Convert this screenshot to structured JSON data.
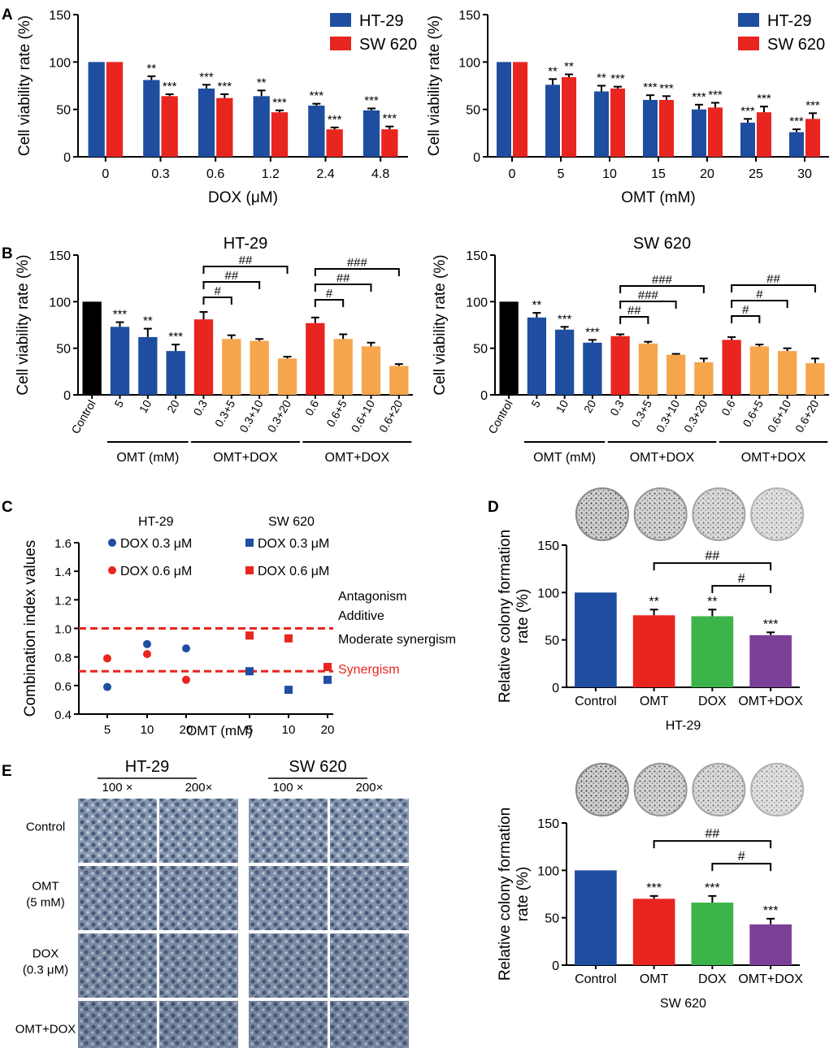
{
  "colors": {
    "blue": "#1f4ea1",
    "red": "#e8251f",
    "orange": "#f5a64c",
    "black": "#000000",
    "green": "#3cb44a",
    "purple": "#7b3f98",
    "threshold": "#e8251f"
  },
  "panel_labels": {
    "a": "A",
    "b": "B",
    "c": "C",
    "d": "D",
    "e": "E"
  },
  "chart_data": [
    {
      "id": "A1",
      "type": "bar",
      "title": "",
      "xlabel": "DOX (μM)",
      "ylabel": "Cell viability rate (%)",
      "ylim": [
        0,
        150
      ],
      "yticks": [
        "0",
        "50",
        "100",
        "150"
      ],
      "categories": [
        "0",
        "0.3",
        "0.6",
        "1.2",
        "2.4",
        "4.8"
      ],
      "legend": [
        "HT-29",
        "SW 620"
      ],
      "series": [
        {
          "name": "HT-29",
          "values": [
            100,
            81,
            72,
            64,
            54,
            49
          ],
          "errors": [
            0,
            4,
            4,
            6,
            2,
            2
          ],
          "stars": [
            "",
            "**",
            "***",
            "**",
            "***",
            "***"
          ]
        },
        {
          "name": "SW 620",
          "values": [
            100,
            64,
            62,
            47,
            29,
            29
          ],
          "errors": [
            0,
            2,
            4,
            2,
            2,
            3
          ],
          "stars": [
            "",
            "***",
            "***",
            "***",
            "***",
            "***"
          ]
        }
      ]
    },
    {
      "id": "A2",
      "type": "bar",
      "title": "",
      "xlabel": "OMT (mM)",
      "ylabel": "Cell viability rate (%)",
      "ylim": [
        0,
        150
      ],
      "yticks": [
        "0",
        "50",
        "100",
        "150"
      ],
      "categories": [
        "0",
        "5",
        "10",
        "15",
        "20",
        "25",
        "30"
      ],
      "legend": [
        "HT-29",
        "SW 620"
      ],
      "series": [
        {
          "name": "HT-29",
          "values": [
            100,
            76,
            69,
            60,
            50,
            36,
            26
          ],
          "errors": [
            0,
            6,
            6,
            5,
            5,
            4,
            3
          ],
          "stars": [
            "",
            "**",
            "**",
            "***",
            "***",
            "***",
            "***"
          ]
        },
        {
          "name": "SW 620",
          "values": [
            100,
            84,
            72,
            60,
            52,
            47,
            40
          ],
          "errors": [
            0,
            3,
            2,
            4,
            5,
            6,
            6
          ],
          "stars": [
            "",
            "**",
            "***",
            "***",
            "***",
            "***",
            "***"
          ]
        }
      ]
    },
    {
      "id": "B1",
      "type": "bar",
      "title": "HT-29",
      "ylabel": "Cell viability rate (%)",
      "ylim": [
        0,
        150
      ],
      "yticks": [
        "0",
        "50",
        "100",
        "150"
      ],
      "categories": [
        "Control",
        "5",
        "10",
        "20",
        "0.3",
        "0.3+5",
        "0.3+10",
        "0.3+20",
        "0.6",
        "0.6+5",
        "0.6+10",
        "0.6+20"
      ],
      "values": [
        100,
        73,
        62,
        47,
        81,
        60,
        58,
        39,
        77,
        60,
        52,
        31
      ],
      "errors": [
        0,
        5,
        9,
        7,
        8,
        4,
        2,
        2,
        6,
        5,
        4,
        2
      ],
      "colors": [
        "black",
        "blue",
        "blue",
        "blue",
        "red",
        "orange",
        "orange",
        "orange",
        "red",
        "orange",
        "orange",
        "orange"
      ],
      "stars": [
        "",
        "***",
        "**",
        "***",
        "",
        "",
        "",
        "",
        "",
        "",
        "",
        ""
      ],
      "groups": [
        "OMT (mM)",
        "OMT+DOX",
        "OMT+DOX"
      ],
      "brackets": [
        {
          "from": 4,
          "to": 5,
          "label": "#"
        },
        {
          "from": 4,
          "to": 6,
          "label": "##"
        },
        {
          "from": 4,
          "to": 7,
          "label": "##"
        },
        {
          "from": 8,
          "to": 9,
          "label": "#"
        },
        {
          "from": 8,
          "to": 10,
          "label": "##"
        },
        {
          "from": 8,
          "to": 11,
          "label": "###"
        }
      ]
    },
    {
      "id": "B2",
      "type": "bar",
      "title": "SW 620",
      "ylabel": "Cell viability rate (%)",
      "ylim": [
        0,
        150
      ],
      "yticks": [
        "0",
        "50",
        "100",
        "150"
      ],
      "categories": [
        "Control",
        "5",
        "10",
        "20",
        "0.3",
        "0.3+5",
        "0.3+10",
        "0.3+20",
        "0.6",
        "0.6+5",
        "0.6+10",
        "0.6+20"
      ],
      "values": [
        100,
        83,
        70,
        56,
        63,
        55,
        43,
        35,
        59,
        52,
        47,
        34
      ],
      "errors": [
        0,
        5,
        3,
        3,
        2,
        2,
        1,
        4,
        3,
        2,
        3,
        5
      ],
      "colors": [
        "black",
        "blue",
        "blue",
        "blue",
        "red",
        "orange",
        "orange",
        "orange",
        "red",
        "orange",
        "orange",
        "orange"
      ],
      "stars": [
        "",
        "**",
        "***",
        "***",
        "",
        "",
        "",
        "",
        "",
        "",
        "",
        ""
      ],
      "groups": [
        "OMT (mM)",
        "OMT+DOX",
        "OMT+DOX"
      ],
      "brackets": [
        {
          "from": 4,
          "to": 5,
          "label": "##"
        },
        {
          "from": 4,
          "to": 6,
          "label": "###"
        },
        {
          "from": 4,
          "to": 7,
          "label": "###"
        },
        {
          "from": 8,
          "to": 9,
          "label": "#"
        },
        {
          "from": 8,
          "to": 10,
          "label": "#"
        },
        {
          "from": 8,
          "to": 11,
          "label": "##"
        }
      ]
    },
    {
      "id": "C",
      "type": "scatter",
      "xlabel": "OMT (mM)",
      "ylabel": "Combination index values",
      "ylim": [
        0.4,
        1.6
      ],
      "yticks": [
        "0.4",
        "0.6",
        "0.8",
        "1.0",
        "1.2",
        "1.4",
        "1.6"
      ],
      "xticks": [
        "5",
        "10",
        "20",
        "5",
        "10",
        "20"
      ],
      "legend_titles": [
        "HT-29",
        "SW 620"
      ],
      "series": [
        {
          "name": "DOX  0.3 μM",
          "cell": "HT-29",
          "marker": "circle",
          "color": "blue",
          "points": [
            [
              0,
              0.59
            ],
            [
              1,
              0.89
            ],
            [
              2,
              0.86
            ]
          ]
        },
        {
          "name": "DOX  0.6 μM",
          "cell": "HT-29",
          "marker": "circle",
          "color": "red",
          "points": [
            [
              0,
              0.79
            ],
            [
              1,
              0.82
            ],
            [
              2,
              0.64
            ]
          ]
        },
        {
          "name": "DOX  0.3 μM",
          "cell": "SW 620",
          "marker": "square",
          "color": "blue",
          "points": [
            [
              3,
              0.7
            ],
            [
              4,
              0.57
            ],
            [
              5,
              0.64
            ]
          ]
        },
        {
          "name": "DOX  0.6 μM",
          "cell": "SW 620",
          "marker": "square",
          "color": "red",
          "points": [
            [
              3,
              0.95
            ],
            [
              4,
              0.93
            ],
            [
              5,
              0.73
            ]
          ]
        }
      ],
      "thresholds": [
        1.0,
        0.7
      ],
      "zone_labels": [
        "Antagonism",
        "Additive",
        "Moderate synergism",
        "Synergism"
      ]
    },
    {
      "id": "D1",
      "type": "bar",
      "ylabel": "Relative colony formation rate (%)",
      "ylim": [
        0,
        150
      ],
      "yticks": [
        "0",
        "50",
        "100",
        "150"
      ],
      "categories": [
        "Control",
        "OMT",
        "DOX",
        "OMT+DOX"
      ],
      "values": [
        100,
        76,
        75,
        55
      ],
      "errors": [
        0,
        6,
        7,
        3
      ],
      "colors": [
        "blue",
        "red",
        "green",
        "purple"
      ],
      "stars": [
        "",
        "**",
        "**",
        "***"
      ],
      "caption": "HT-29",
      "brackets": [
        {
          "from": 1,
          "to": 3,
          "label": "##"
        },
        {
          "from": 2,
          "to": 3,
          "label": "#"
        }
      ]
    },
    {
      "id": "D2",
      "type": "bar",
      "ylabel": "Relative colony formation rate (%)",
      "ylim": [
        0,
        150
      ],
      "yticks": [
        "0",
        "50",
        "100",
        "150"
      ],
      "categories": [
        "Control",
        "OMT",
        "DOX",
        "OMT+DOX"
      ],
      "values": [
        100,
        70,
        66,
        43
      ],
      "errors": [
        0,
        3,
        7,
        6
      ],
      "colors": [
        "blue",
        "red",
        "green",
        "purple"
      ],
      "stars": [
        "",
        "***",
        "***",
        "***"
      ],
      "caption": "SW 620",
      "brackets": [
        {
          "from": 1,
          "to": 3,
          "label": "##"
        },
        {
          "from": 2,
          "to": 3,
          "label": "#"
        }
      ]
    }
  ],
  "micrographs": {
    "groups": [
      "HT-29",
      "SW 620"
    ],
    "magnifications": [
      "100 ×",
      "200×",
      "100 ×",
      "200×"
    ],
    "rows": [
      "Control",
      "OMT (5 mM)",
      "DOX (0.3 μM)",
      "OMT+DOX"
    ]
  }
}
